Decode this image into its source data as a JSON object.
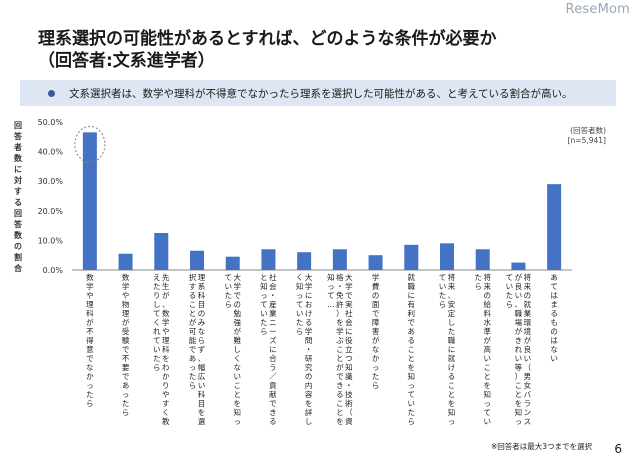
{
  "logo_text": "ReseMom",
  "title_line1": "理系選択の可能性があるとすれば、どのような条件が必要か",
  "title_line2": "（回答者:文系進学者）",
  "banner_text": "文系選択者は、数学や理科が不得意でなかったら理系を選択した可能性がある、と考えている割合が高い。",
  "respondents_label": "(回答者数)",
  "respondents_value": "[n=5,941]",
  "note": "※回答者は最大3つまでを選択",
  "page_number": "6",
  "colors": {
    "bar": "#4472c4",
    "banner": "#dde6f2",
    "bullet": "#3b5998",
    "highlight": "#7f7f7f"
  },
  "chart_data": {
    "type": "bar",
    "ylabel": "回答者数に対する回答数の割合",
    "ylim": [
      0,
      50
    ],
    "yticks": [
      "0.0%",
      "10.0%",
      "20.0%",
      "30.0%",
      "40.0%",
      "50.0%"
    ],
    "highlighted_index": 0,
    "categories": [
      "数学や理科が不得意でなかったら",
      "数学や物理が受験で不要であったら",
      "先生が、数学や理科をわかりやすく教えたりしてくれていたら",
      "理系科目のみならず、幅広い科目を選択することが可能であったら",
      "大学での勉強が難しくないことを知っていたら",
      "社会・産業ニーズに合う／貢献できると知っていたら",
      "大学における学問・研究の内容を詳しく知っていたら",
      "大学で実社会に役立つ知識・技術（資格・免許）を学ぶことができることを知って…",
      "学費の面で障害がなかったら",
      "就職に有利であることを知っていたら",
      "将来、安定した職に就けることを知っていたら",
      "将来の給料水準が高いことを知っていたら",
      "将来の就業環境が良い（男女バランスが良い、職場がきれい等）ことを知っていたら",
      "あてはまるものはない"
    ],
    "values": [
      46.5,
      5.5,
      12.5,
      6.5,
      4.5,
      7.0,
      6.0,
      7.0,
      5.0,
      8.5,
      9.0,
      7.0,
      2.5,
      29.0
    ]
  }
}
